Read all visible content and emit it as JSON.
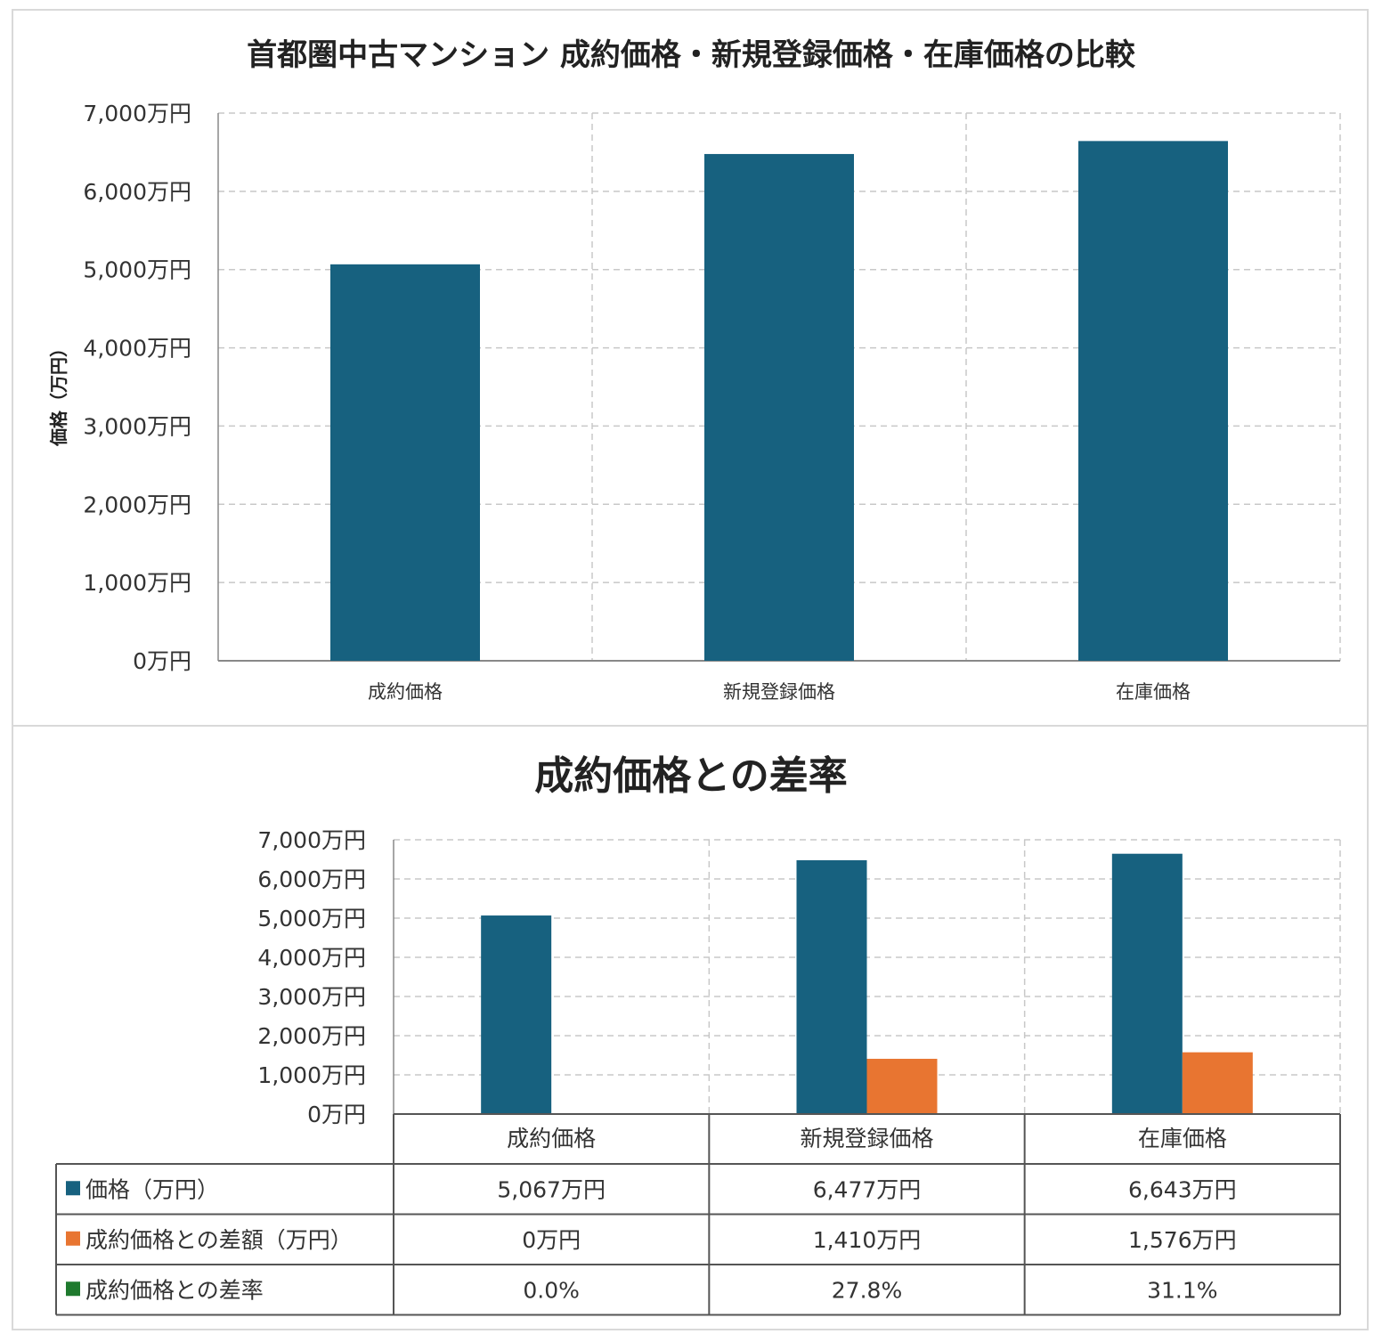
{
  "colors": {
    "price": "#17617f",
    "diff": "#e87531",
    "rate": "#1f7a2e",
    "grid": "#c8c8c8",
    "axis": "#888888"
  },
  "chart_data": [
    {
      "type": "bar",
      "title": "首都圏中古マンション 成約価格・新規登録価格・在庫価格の比較",
      "ylabel": "価格（万円）",
      "xlabel": "",
      "categories": [
        "成約価格",
        "新規登録価格",
        "在庫価格"
      ],
      "series": [
        {
          "values": [
            5067,
            6477,
            6643
          ]
        }
      ],
      "ylim": [
        0,
        7000
      ],
      "yticks": [
        {
          "value": 0,
          "label": "0万円"
        },
        {
          "value": 1000,
          "label": "1,000万円"
        },
        {
          "value": 2000,
          "label": "2,000万円"
        },
        {
          "value": 3000,
          "label": "3,000万円"
        },
        {
          "value": 4000,
          "label": "4,000万円"
        },
        {
          "value": 5000,
          "label": "5,000万円"
        },
        {
          "value": 6000,
          "label": "6,000万円"
        },
        {
          "value": 7000,
          "label": "7,000万円"
        }
      ],
      "grid": true,
      "legend": "none"
    },
    {
      "type": "bar",
      "title": "成約価格との差率",
      "categories": [
        "成約価格",
        "新規登録価格",
        "在庫価格"
      ],
      "series": [
        {
          "name": "価格（万円）",
          "values": [
            5067,
            6477,
            6643
          ]
        },
        {
          "name": "成約価格との差額（万円）",
          "values": [
            0,
            1410,
            1576
          ]
        }
      ],
      "ylim": [
        0,
        7000
      ],
      "yticks": [
        {
          "value": 0,
          "label": "0万円"
        },
        {
          "value": 1000,
          "label": "1,000万円"
        },
        {
          "value": 2000,
          "label": "2,000万円"
        },
        {
          "value": 3000,
          "label": "3,000万円"
        },
        {
          "value": 4000,
          "label": "4,000万円"
        },
        {
          "value": 5000,
          "label": "5,000万円"
        },
        {
          "value": 6000,
          "label": "6,000万円"
        },
        {
          "value": 7000,
          "label": "7,000万円"
        }
      ],
      "grid": true,
      "legend": "data table",
      "table": {
        "rows": [
          {
            "label": "価格（万円）",
            "color": "#17617f",
            "cells": [
              "5,067万円",
              "6,477万円",
              "6,643万円"
            ]
          },
          {
            "label": "成約価格との差額（万円）",
            "color": "#e87531",
            "cells": [
              "0万円",
              "1,410万円",
              "1,576万円"
            ]
          },
          {
            "label": "成約価格との差率",
            "color": "#1f7a2e",
            "cells": [
              "0.0%",
              "27.8%",
              "31.1%"
            ]
          }
        ]
      }
    }
  ]
}
